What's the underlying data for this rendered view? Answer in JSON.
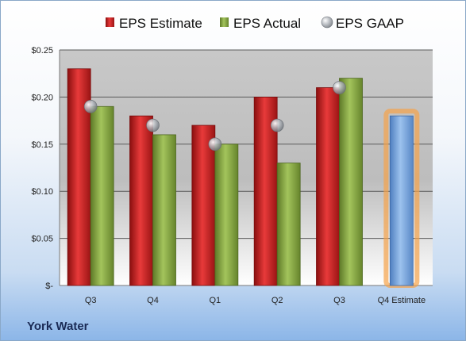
{
  "company": "York Water",
  "chart_data": {
    "type": "bar",
    "categories": [
      "Q3",
      "Q4",
      "Q1",
      "Q2",
      "Q3",
      "Q4 Estimate"
    ],
    "series": [
      {
        "name": "EPS Estimate",
        "type": "bar",
        "color": "#d42a2a",
        "values": [
          0.23,
          0.18,
          0.17,
          0.2,
          0.21,
          null
        ]
      },
      {
        "name": "EPS Actual",
        "type": "bar",
        "color": "#8fb04a",
        "values": [
          0.19,
          0.16,
          0.15,
          0.13,
          0.22,
          0.18
        ],
        "highlight_last": {
          "color": "#7aa7dc",
          "glow": "#f5a34a"
        }
      },
      {
        "name": "EPS GAAP",
        "type": "marker",
        "color": "#9aa0a8",
        "values": [
          0.19,
          0.17,
          0.15,
          0.17,
          0.21,
          null
        ]
      }
    ],
    "y_ticks": [
      "$-",
      "$0.05",
      "$0.10",
      "$0.15",
      "$0.20",
      "$0.25"
    ],
    "ylim": [
      0,
      0.25
    ],
    "grid": true,
    "legend_position": "top"
  }
}
